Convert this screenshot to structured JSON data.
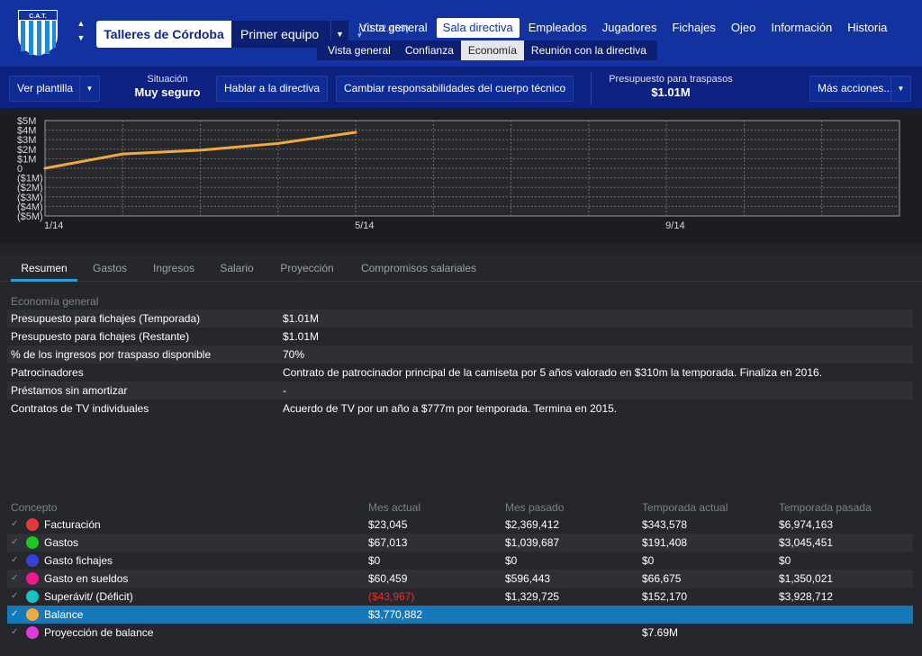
{
  "header": {
    "crest_text": "C.A.T.",
    "club_name": "Talleres de Córdoba",
    "team_name": "Primer equipo",
    "team_date": "(10.02.459)",
    "nav": [
      {
        "label": "Vista general",
        "active": false
      },
      {
        "label": "Sala directiva",
        "active": true
      },
      {
        "label": "Empleados",
        "active": false
      },
      {
        "label": "Jugadores",
        "active": false
      },
      {
        "label": "Fichajes",
        "active": false
      },
      {
        "label": "Ojeo",
        "active": false
      },
      {
        "label": "Información",
        "active": false
      },
      {
        "label": "Historia",
        "active": false
      }
    ],
    "subnav": [
      {
        "label": "Vista general",
        "active": false
      },
      {
        "label": "Confianza",
        "active": false
      },
      {
        "label": "Economía",
        "active": true
      },
      {
        "label": "Reunión con la directiva",
        "active": false
      }
    ]
  },
  "toolbar": {
    "view_squad": "Ver plantilla",
    "situation_label": "Situación",
    "situation_value": "Muy seguro",
    "talk_board": "Hablar a la directiva",
    "change_staff": "Cambiar responsabilidades del cuerpo técnico",
    "budget_label": "Presupuesto para traspasos",
    "budget_value": "$1.01M",
    "more_actions": "Más acciones..."
  },
  "chart_data": {
    "type": "line",
    "y_tick_labels": [
      "$5M",
      "$4M",
      "$3M",
      "$2M",
      "$1M",
      "0",
      "($1M)",
      "($2M)",
      "($3M)",
      "($4M)",
      "($5M)"
    ],
    "x_tick_labels": [
      "1/14",
      "5/14",
      "9/14"
    ],
    "ylim": [
      -5,
      5
    ],
    "x_months": [
      1,
      2,
      3,
      4,
      5
    ],
    "values_musd": [
      0.0,
      1.5,
      1.9,
      2.6,
      3.77
    ],
    "x_range_months": [
      1,
      12
    ],
    "grid": true,
    "line_color": "#f3a93b"
  },
  "tabs": [
    {
      "label": "Resumen",
      "active": true
    },
    {
      "label": "Gastos",
      "active": false
    },
    {
      "label": "Ingresos",
      "active": false
    },
    {
      "label": "Salario",
      "active": false
    },
    {
      "label": "Proyección",
      "active": false
    },
    {
      "label": "Compromisos salariales",
      "active": false
    }
  ],
  "overview": {
    "title": "Economía general",
    "rows": [
      {
        "label": "Presupuesto para fichajes (Temporada)",
        "value": "$1.01M"
      },
      {
        "label": "Presupuesto para fichajes (Restante)",
        "value": "$1.01M"
      },
      {
        "label": "% de los ingresos por traspaso disponible",
        "value": "70%"
      },
      {
        "label": "Patrocinadores",
        "value": "Contrato de patrocinador principal de la camiseta por 5 años valorado en $310m la temporada. Finaliza en 2016."
      },
      {
        "label": "Préstamos sin amortizar",
        "value": "-"
      },
      {
        "label": "Contratos de TV individuales",
        "value": "Acuerdo de TV por un año a $777m por temporada. Termina en 2015."
      }
    ]
  },
  "summary": {
    "headers": [
      "Concepto",
      "Mes actual",
      "Mes pasado",
      "Temporada actual",
      "Temporada pasada"
    ],
    "rows": [
      {
        "concept": "Facturación",
        "color": "#e53a3a",
        "mes_actual": "$23,045",
        "mes_pasado": "$2,369,412",
        "temp_actual": "$343,578",
        "temp_pasada": "$6,974,163",
        "negative": false,
        "selected": false
      },
      {
        "concept": "Gastos",
        "color": "#1ec81e",
        "mes_actual": "$67,013",
        "mes_pasado": "$1,039,687",
        "temp_actual": "$191,408",
        "temp_pasada": "$3,045,451",
        "negative": false,
        "selected": false
      },
      {
        "concept": "Gasto fichajes",
        "color": "#3740d8",
        "mes_actual": "$0",
        "mes_pasado": "$0",
        "temp_actual": "$0",
        "temp_pasada": "$0",
        "negative": false,
        "selected": false
      },
      {
        "concept": "Gasto en sueldos",
        "color": "#ef1a8c",
        "mes_actual": "$60,459",
        "mes_pasado": "$596,443",
        "temp_actual": "$66,675",
        "temp_pasada": "$1,350,021",
        "negative": false,
        "selected": false
      },
      {
        "concept": "Superávit/ (Déficit)",
        "color": "#15c4c4",
        "mes_actual": "($43,967)",
        "mes_pasado": "$1,329,725",
        "temp_actual": "$152,170",
        "temp_pasada": "$3,928,712",
        "negative": true,
        "selected": false
      },
      {
        "concept": "Balance",
        "color": "#f3a93b",
        "mes_actual": "$3,770,882",
        "mes_pasado": "",
        "temp_actual": "",
        "temp_pasada": "",
        "negative": false,
        "selected": true
      },
      {
        "concept": "Proyección de balance",
        "color": "#e23ad6",
        "mes_actual": "",
        "mes_pasado": "",
        "temp_actual": "$7.69M",
        "temp_pasada": "",
        "negative": false,
        "selected": false
      }
    ]
  }
}
